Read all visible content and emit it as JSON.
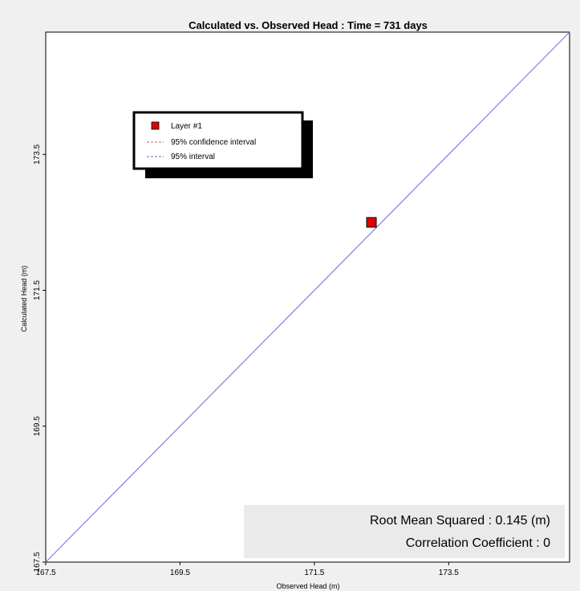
{
  "chart_data": {
    "type": "scatter",
    "title": "Calculated vs. Observed Head : Time = 731 days",
    "xlabel": "Observed Head (m)",
    "ylabel": "Calculated Head (m)",
    "xlim": [
      167.5,
      175.3
    ],
    "ylim": [
      167.5,
      175.3
    ],
    "x_ticks": [
      "167.5",
      "169.5",
      "171.5",
      "173.5"
    ],
    "y_ticks": [
      "167.5",
      "169.5",
      "171.5",
      "173.5"
    ],
    "series": [
      {
        "name": "Layer #1",
        "marker": "square",
        "color": "#e00000",
        "points": [
          {
            "x": 172.35,
            "y": 172.5
          }
        ]
      }
    ],
    "reference_line": {
      "from": [
        167.5,
        167.5
      ],
      "to": [
        175.3,
        175.3
      ],
      "color": "#7f7fe6"
    },
    "legend": {
      "placement": "top-left",
      "entries": [
        {
          "label": "Layer #1",
          "type": "marker",
          "color": "#e00000"
        },
        {
          "label": "95% confidence interval",
          "type": "dashed",
          "color": "#e06060"
        },
        {
          "label": "95% interval",
          "type": "dashed",
          "color": "#6060e0"
        }
      ]
    },
    "grid": false,
    "stats": {
      "rms_label": "Root Mean Squared : 0.145 (m)",
      "corr_label": "Correlation Coefficient : 0"
    }
  }
}
